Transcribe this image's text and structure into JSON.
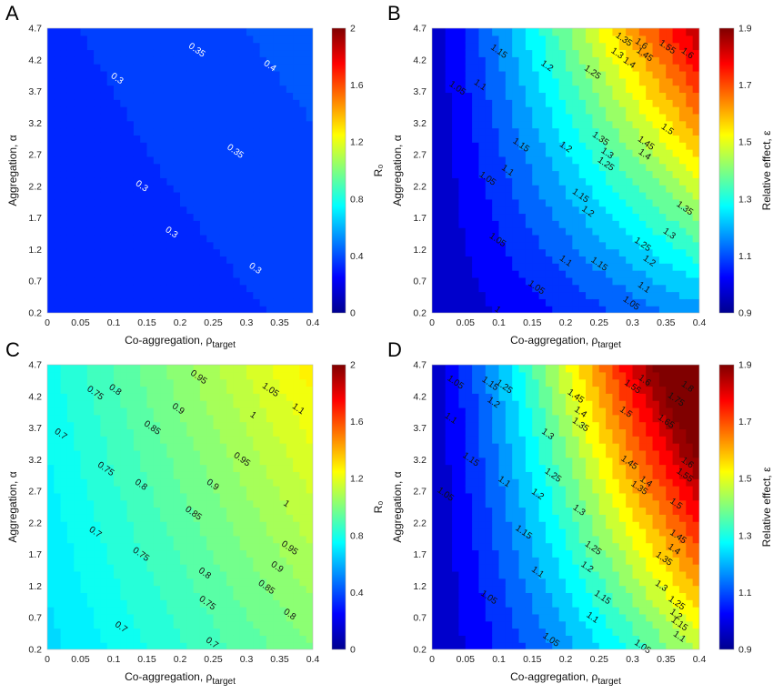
{
  "figure": {
    "colorbar_label_R0": "R₀",
    "colorbar_label_eps": "Relative effect, ε"
  },
  "chart_data": [
    {
      "panel": "A",
      "type": "heatmap",
      "subtype": "filled-contour",
      "xlabel_prefix": "Co-aggregation, ρ",
      "xlabel_sub": "target",
      "ylabel": "Aggregation, α",
      "x_ticks": [
        "0",
        "0.05",
        "0.1",
        "0.15",
        "0.2",
        "0.25",
        "0.3",
        "0.35",
        "0.4"
      ],
      "y_ticks": [
        "0.2",
        "0.7",
        "1.2",
        "1.7",
        "2.2",
        "2.7",
        "3.2",
        "3.7",
        "4.2",
        "4.7"
      ],
      "xlim": [
        0,
        0.4
      ],
      "ylim": [
        0.2,
        4.7
      ],
      "colorbar": {
        "label": "R₀",
        "range": [
          0,
          2
        ],
        "ticks": [
          "0",
          "0.4",
          "0.8",
          "1.2",
          "1.6",
          "2"
        ]
      },
      "contour_labels": [
        {
          "text": "0.35",
          "x": 0.225,
          "y": 4.35
        },
        {
          "text": "0.4",
          "x": 0.335,
          "y": 4.1
        },
        {
          "text": "0.3",
          "x": 0.105,
          "y": 3.9
        },
        {
          "text": "0.35",
          "x": 0.283,
          "y": 2.75
        },
        {
          "text": "0.3",
          "x": 0.142,
          "y": 2.2
        },
        {
          "text": "0.3",
          "x": 0.187,
          "y": 1.47
        },
        {
          "text": "0.3",
          "x": 0.313,
          "y": 0.9
        }
      ],
      "value_field": "R0 nearly uniform between 0.3 and 0.4 across the grid"
    },
    {
      "panel": "B",
      "type": "heatmap",
      "subtype": "filled-contour",
      "xlabel_prefix": "Co-aggregation, ρ",
      "xlabel_sub": "target",
      "ylabel": "Aggregation, α",
      "x_ticks": [
        "0",
        "0.05",
        "0.1",
        "0.15",
        "0.2",
        "0.25",
        "0.3",
        "0.35",
        "0.4"
      ],
      "y_ticks": [
        "0.2",
        "0.7",
        "1.2",
        "1.7",
        "2.2",
        "2.7",
        "3.2",
        "3.7",
        "4.2",
        "4.7"
      ],
      "xlim": [
        0,
        0.4
      ],
      "ylim": [
        0.2,
        4.7
      ],
      "colorbar": {
        "label": "Relative effect, ε",
        "range": [
          0.9,
          1.9
        ],
        "ticks": [
          "0.9",
          "1.1",
          "1.3",
          "1.5",
          "1.7",
          "1.9"
        ]
      },
      "contour_labels": [
        {
          "text": "1.35",
          "x": 0.287,
          "y": 4.52
        },
        {
          "text": "1.6",
          "x": 0.313,
          "y": 4.45
        },
        {
          "text": "1.55",
          "x": 0.352,
          "y": 4.4
        },
        {
          "text": "1.6",
          "x": 0.382,
          "y": 4.3
        },
        {
          "text": "1.15",
          "x": 0.1,
          "y": 4.33
        },
        {
          "text": "1.2",
          "x": 0.172,
          "y": 4.1
        },
        {
          "text": "1.25",
          "x": 0.24,
          "y": 4.0
        },
        {
          "text": "1.3",
          "x": 0.277,
          "y": 4.3
        },
        {
          "text": "1.4",
          "x": 0.295,
          "y": 4.15
        },
        {
          "text": "1.45",
          "x": 0.318,
          "y": 4.28
        },
        {
          "text": "1.05",
          "x": 0.038,
          "y": 3.75
        },
        {
          "text": "1.1",
          "x": 0.072,
          "y": 3.8
        },
        {
          "text": "1.5",
          "x": 0.352,
          "y": 3.1
        },
        {
          "text": "1.35",
          "x": 0.252,
          "y": 2.95
        },
        {
          "text": "1.45",
          "x": 0.32,
          "y": 2.88
        },
        {
          "text": "1.4",
          "x": 0.318,
          "y": 2.7
        },
        {
          "text": "1.15",
          "x": 0.133,
          "y": 2.85
        },
        {
          "text": "1.2",
          "x": 0.2,
          "y": 2.82
        },
        {
          "text": "1.3",
          "x": 0.262,
          "y": 2.72
        },
        {
          "text": "1.25",
          "x": 0.26,
          "y": 2.55
        },
        {
          "text": "1.1",
          "x": 0.113,
          "y": 2.45
        },
        {
          "text": "1.05",
          "x": 0.083,
          "y": 2.32
        },
        {
          "text": "1.15",
          "x": 0.222,
          "y": 2.05
        },
        {
          "text": "1.2",
          "x": 0.233,
          "y": 1.8
        },
        {
          "text": "1.35",
          "x": 0.378,
          "y": 1.85
        },
        {
          "text": "1.3",
          "x": 0.355,
          "y": 1.45
        },
        {
          "text": "1.25",
          "x": 0.315,
          "y": 1.28
        },
        {
          "text": "1.05",
          "x": 0.098,
          "y": 1.35
        },
        {
          "text": "1.1",
          "x": 0.2,
          "y": 1.02
        },
        {
          "text": "1.15",
          "x": 0.25,
          "y": 0.97
        },
        {
          "text": "1.2",
          "x": 0.325,
          "y": 1.02
        },
        {
          "text": "1.05",
          "x": 0.156,
          "y": 0.6
        },
        {
          "text": "1.1",
          "x": 0.317,
          "y": 0.6
        },
        {
          "text": "1.05",
          "x": 0.298,
          "y": 0.35
        },
        {
          "text": "1",
          "x": 0.098,
          "y": 0.25
        }
      ]
    },
    {
      "panel": "C",
      "type": "heatmap",
      "subtype": "filled-contour",
      "xlabel_prefix": "Co-aggregation, ρ",
      "xlabel_sub": "target",
      "ylabel": "Aggregation, α",
      "x_ticks": [
        "0",
        "0.05",
        "0.1",
        "0.15",
        "0.2",
        "0.25",
        "0.3",
        "0.35",
        "0.4"
      ],
      "y_ticks": [
        "0.2",
        "0.7",
        "1.2",
        "1.7",
        "2.2",
        "2.7",
        "3.2",
        "3.7",
        "4.2",
        "4.7"
      ],
      "xlim": [
        0,
        0.4
      ],
      "ylim": [
        0.2,
        4.7
      ],
      "colorbar": {
        "label": "R₀",
        "range": [
          0,
          2
        ],
        "ticks": [
          "0",
          "0.4",
          "0.8",
          "1.2",
          "1.6",
          "2"
        ]
      },
      "contour_labels": [
        {
          "text": "0.95",
          "x": 0.228,
          "y": 4.5
        },
        {
          "text": "0.75",
          "x": 0.072,
          "y": 4.25
        },
        {
          "text": "0.8",
          "x": 0.102,
          "y": 4.3
        },
        {
          "text": "1.05",
          "x": 0.336,
          "y": 4.3
        },
        {
          "text": "1.1",
          "x": 0.378,
          "y": 4.0
        },
        {
          "text": "0.9",
          "x": 0.197,
          "y": 4.0
        },
        {
          "text": "1",
          "x": 0.31,
          "y": 3.9
        },
        {
          "text": "0.85",
          "x": 0.158,
          "y": 3.7
        },
        {
          "text": "0.7",
          "x": 0.02,
          "y": 3.6
        },
        {
          "text": "0.75",
          "x": 0.088,
          "y": 3.05
        },
        {
          "text": "0.95",
          "x": 0.293,
          "y": 3.2
        },
        {
          "text": "0.8",
          "x": 0.141,
          "y": 2.8
        },
        {
          "text": "0.9",
          "x": 0.249,
          "y": 2.8
        },
        {
          "text": "0.85",
          "x": 0.22,
          "y": 2.35
        },
        {
          "text": "1",
          "x": 0.36,
          "y": 2.5
        },
        {
          "text": "0.7",
          "x": 0.072,
          "y": 2.05
        },
        {
          "text": "0.95",
          "x": 0.365,
          "y": 1.8
        },
        {
          "text": "0.75",
          "x": 0.141,
          "y": 1.7
        },
        {
          "text": "0.9",
          "x": 0.346,
          "y": 1.5
        },
        {
          "text": "0.8",
          "x": 0.237,
          "y": 1.4
        },
        {
          "text": "0.85",
          "x": 0.33,
          "y": 1.18
        },
        {
          "text": "0.75",
          "x": 0.241,
          "y": 0.93
        },
        {
          "text": "0.8",
          "x": 0.365,
          "y": 0.75
        },
        {
          "text": "0.7",
          "x": 0.111,
          "y": 0.55
        },
        {
          "text": "0.7",
          "x": 0.248,
          "y": 0.3
        }
      ]
    },
    {
      "panel": "D",
      "type": "heatmap",
      "subtype": "filled-contour",
      "xlabel_prefix": "Co-aggregation, ρ",
      "xlabel_sub": "target",
      "ylabel": "Aggregation, α",
      "x_ticks": [
        "0",
        "0.05",
        "0.1",
        "0.15",
        "0.2",
        "0.25",
        "0.3",
        "0.35",
        "0.4"
      ],
      "y_ticks": [
        "0.2",
        "0.7",
        "1.2",
        "1.7",
        "2.2",
        "2.7",
        "3.2",
        "3.7",
        "4.2",
        "4.7"
      ],
      "xlim": [
        0,
        0.4
      ],
      "ylim": [
        0.2,
        4.7
      ],
      "colorbar": {
        "label": "Relative effect, ε",
        "range": [
          0.9,
          1.9
        ],
        "ticks": [
          "0.9",
          "1.1",
          "1.3",
          "1.5",
          "1.7",
          "1.9"
        ]
      },
      "contour_labels": [
        {
          "text": "1.05",
          "x": 0.035,
          "y": 4.42
        },
        {
          "text": "1.15",
          "x": 0.087,
          "y": 4.4
        },
        {
          "text": "1.25",
          "x": 0.108,
          "y": 4.35
        },
        {
          "text": "1.2",
          "x": 0.092,
          "y": 4.1
        },
        {
          "text": "1.45",
          "x": 0.215,
          "y": 4.2
        },
        {
          "text": "1.55",
          "x": 0.3,
          "y": 4.35
        },
        {
          "text": "1.6",
          "x": 0.318,
          "y": 4.45
        },
        {
          "text": "1.75",
          "x": 0.365,
          "y": 4.15
        },
        {
          "text": "1.8",
          "x": 0.382,
          "y": 4.35
        },
        {
          "text": "1.4",
          "x": 0.222,
          "y": 3.95
        },
        {
          "text": "1.5",
          "x": 0.29,
          "y": 3.95
        },
        {
          "text": "1.65",
          "x": 0.35,
          "y": 3.8
        },
        {
          "text": "1.1",
          "x": 0.028,
          "y": 3.85
        },
        {
          "text": "1.35",
          "x": 0.222,
          "y": 3.75
        },
        {
          "text": "1.3",
          "x": 0.173,
          "y": 3.6
        },
        {
          "text": "1.15",
          "x": 0.058,
          "y": 3.2
        },
        {
          "text": "1.45",
          "x": 0.295,
          "y": 3.15
        },
        {
          "text": "1.6",
          "x": 0.382,
          "y": 3.15
        },
        {
          "text": "1.25",
          "x": 0.181,
          "y": 2.95
        },
        {
          "text": "1.55",
          "x": 0.378,
          "y": 2.95
        },
        {
          "text": "1.1",
          "x": 0.108,
          "y": 2.85
        },
        {
          "text": "1.35",
          "x": 0.31,
          "y": 2.75
        },
        {
          "text": "1.4",
          "x": 0.32,
          "y": 2.85
        },
        {
          "text": "1.05",
          "x": 0.02,
          "y": 2.65
        },
        {
          "text": "1.2",
          "x": 0.158,
          "y": 2.65
        },
        {
          "text": "1.5",
          "x": 0.365,
          "y": 2.5
        },
        {
          "text": "1.3",
          "x": 0.22,
          "y": 2.4
        },
        {
          "text": "1.15",
          "x": 0.137,
          "y": 2.05
        },
        {
          "text": "1.45",
          "x": 0.368,
          "y": 1.98
        },
        {
          "text": "1.4",
          "x": 0.362,
          "y": 1.78
        },
        {
          "text": "1.35",
          "x": 0.347,
          "y": 1.63
        },
        {
          "text": "1.25",
          "x": 0.241,
          "y": 1.8
        },
        {
          "text": "1.2",
          "x": 0.232,
          "y": 1.5
        },
        {
          "text": "1.1",
          "x": 0.158,
          "y": 1.42
        },
        {
          "text": "1.3",
          "x": 0.343,
          "y": 1.2
        },
        {
          "text": "1.05",
          "x": 0.085,
          "y": 1.02
        },
        {
          "text": "1.15",
          "x": 0.255,
          "y": 1.02
        },
        {
          "text": "1.25",
          "x": 0.366,
          "y": 0.93
        },
        {
          "text": "1.2",
          "x": 0.365,
          "y": 0.75
        },
        {
          "text": "1.1",
          "x": 0.24,
          "y": 0.7
        },
        {
          "text": "1.15",
          "x": 0.37,
          "y": 0.6
        },
        {
          "text": "1.05",
          "x": 0.178,
          "y": 0.35
        },
        {
          "text": "1.05",
          "x": 0.315,
          "y": 0.24
        },
        {
          "text": "1.1",
          "x": 0.37,
          "y": 0.4
        }
      ]
    }
  ]
}
